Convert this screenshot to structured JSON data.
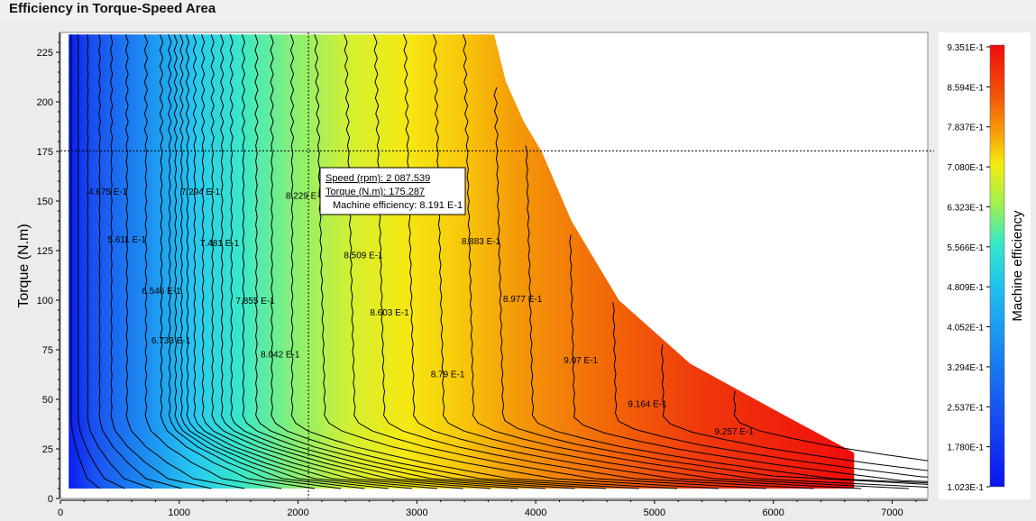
{
  "window": {
    "title": "Efficiency in Torque-Speed Area"
  },
  "colors": {
    "low": "#0a1cf0",
    "mid": "#e8f020",
    "high": "#f01010"
  },
  "chart_data": {
    "type": "heatmap",
    "xlabel": "",
    "ylabel": "Torque (N.m)",
    "xlim": [
      0,
      7300
    ],
    "ylim": [
      0,
      235
    ],
    "xticks": [
      0,
      1000,
      2000,
      3000,
      4000,
      5000,
      6000,
      7000
    ],
    "yticks": [
      0,
      25,
      50,
      75,
      100,
      125,
      150,
      175,
      200,
      225
    ],
    "max_torque_envelope": [
      [
        70,
        234
      ],
      [
        3650,
        234
      ],
      [
        3750,
        210
      ],
      [
        3900,
        190
      ],
      [
        4050,
        175
      ],
      [
        4300,
        140
      ],
      [
        4700,
        100
      ],
      [
        5300,
        68
      ],
      [
        6000,
        45
      ],
      [
        6680,
        23
      ],
      [
        6680,
        5
      ],
      [
        70,
        5
      ]
    ],
    "contours": [
      {
        "label": "4.675 E-1",
        "x": 400,
        "y": 155
      },
      {
        "label": "5.611 E-1",
        "x": 560,
        "y": 131
      },
      {
        "label": "6.546 E-1",
        "x": 850,
        "y": 105
      },
      {
        "label": "6.733 E-1",
        "x": 930,
        "y": 80
      },
      {
        "label": "7.294 E-1",
        "x": 1180,
        "y": 155
      },
      {
        "label": "7.481 E-1",
        "x": 1340,
        "y": 129
      },
      {
        "label": "7.855 E-1",
        "x": 1640,
        "y": 100
      },
      {
        "label": "8.042 E-1",
        "x": 1850,
        "y": 73
      },
      {
        "label": "8.229 E-1",
        "x": 2060,
        "y": 153
      },
      {
        "label": "8.509 E-1",
        "x": 2550,
        "y": 123
      },
      {
        "label": "8.603 E-1",
        "x": 2770,
        "y": 94
      },
      {
        "label": "8.79 E-1",
        "x": 3260,
        "y": 63
      },
      {
        "label": "8.883 E-1",
        "x": 3540,
        "y": 130
      },
      {
        "label": "8.977 E-1",
        "x": 3890,
        "y": 101
      },
      {
        "label": "9.07 E-1",
        "x": 4380,
        "y": 70
      },
      {
        "label": "9.164 E-1",
        "x": 4940,
        "y": 48
      },
      {
        "label": "9.257 E-1",
        "x": 5670,
        "y": 34
      }
    ],
    "cursor": {
      "speed": 2087.539,
      "torque": 175.287
    },
    "tooltip": {
      "speed": "Speed (rpm): 2 087.539",
      "torque": "Torque (N.m): 175.287",
      "efficiency": "Machine efficiency: 8.191 E-1"
    },
    "colorbar": {
      "label": "Machine efficiency",
      "ticks": [
        "9.351E-1",
        "8.594E-1",
        "7.837E-1",
        "7.080E-1",
        "6.323E-1",
        "5.566E-1",
        "4.809E-1",
        "4.052E-1",
        "3.294E-1",
        "2.537E-1",
        "1.780E-1",
        "1.023E-1"
      ]
    }
  }
}
